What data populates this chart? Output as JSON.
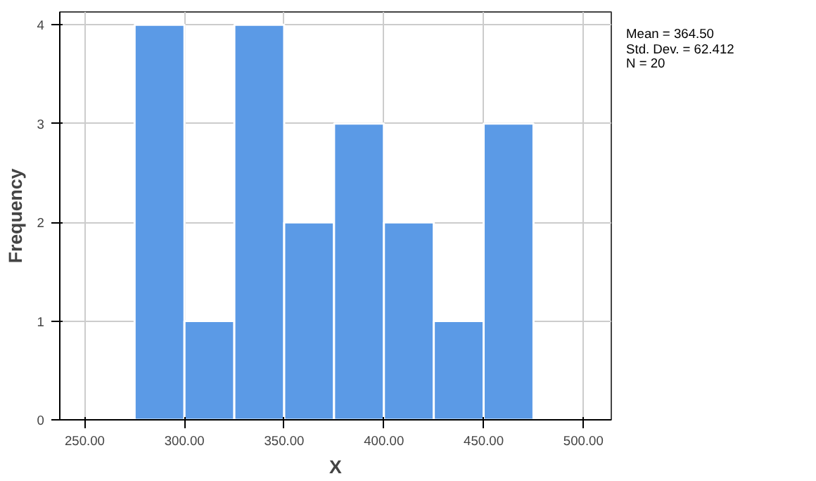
{
  "chart_data": {
    "type": "histogram",
    "xlabel": "X",
    "ylabel": "Frequency",
    "bins": [
      275,
      300,
      325,
      350,
      375,
      400,
      425,
      450,
      475
    ],
    "values": [
      4,
      1,
      4,
      2,
      3,
      2,
      1,
      3
    ],
    "color": "#5b9ae6",
    "xlim": [
      237.5,
      514
    ],
    "ylim": [
      0,
      4.13
    ],
    "xticks": [
      {
        "value": 250,
        "label": "250.00"
      },
      {
        "value": 300,
        "label": "300.00"
      },
      {
        "value": 350,
        "label": "350.00"
      },
      {
        "value": 400,
        "label": "400.00"
      },
      {
        "value": 450,
        "label": "450.00"
      },
      {
        "value": 500,
        "label": "500.00"
      }
    ],
    "yticks": [
      0,
      1,
      2,
      3,
      4
    ],
    "grid": true,
    "annotations": [
      "Mean = 364.50",
      "Std. Dev. = 62.412",
      "N = 20"
    ]
  }
}
